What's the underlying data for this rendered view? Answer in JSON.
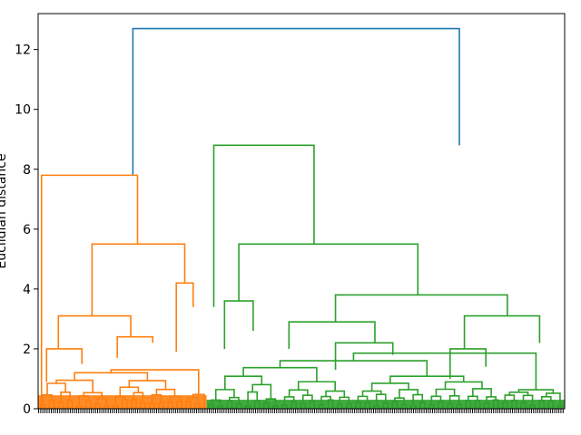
{
  "chart_data": {
    "type": "dendrogram",
    "ylabel": "Euclidian distance",
    "xlabel": "",
    "ylim": [
      0,
      13.2
    ],
    "yticks": [
      0,
      2,
      4,
      6,
      8,
      10,
      12
    ],
    "grid": false,
    "colors": {
      "root": "#1f77b4",
      "cluster_1": "#ff7f0e",
      "cluster_2": "#2ca02c"
    },
    "leaf_count": 500,
    "merges": [
      {
        "cluster": "root",
        "height": 12.7,
        "left": {
          "x": 0.18,
          "h": 7.8
        },
        "right": {
          "x": 0.8,
          "h": 8.8
        }
      },
      {
        "cluster": "cluster_1",
        "height": 7.8,
        "left": {
          "x": 0.02,
          "h": 0.0
        },
        "right": {
          "x": 0.59,
          "h": 5.5
        }
      },
      {
        "cluster": "cluster_1",
        "height": 5.5,
        "left": {
          "x": 0.32,
          "h": 3.1
        },
        "right": {
          "x": 0.87,
          "h": 4.2
        }
      },
      {
        "cluster": "cluster_1",
        "height": 3.1,
        "left": {
          "x": 0.12,
          "h": 2.0
        },
        "right": {
          "x": 0.55,
          "h": 2.4
        }
      },
      {
        "cluster": "cluster_1",
        "height": 2.0,
        "left": {
          "x": 0.05,
          "h": 0.9
        },
        "right": {
          "x": 0.26,
          "h": 1.5
        }
      },
      {
        "cluster": "cluster_1",
        "height": 2.4,
        "left": {
          "x": 0.47,
          "h": 1.7
        },
        "right": {
          "x": 0.68,
          "h": 2.2
        }
      },
      {
        "cluster": "cluster_1",
        "height": 4.2,
        "left": {
          "x": 0.82,
          "h": 1.9
        },
        "right": {
          "x": 0.92,
          "h": 3.4
        }
      },
      {
        "cluster": "cluster_2",
        "height": 8.8,
        "left": {
          "x": 0.02,
          "h": 3.4
        },
        "right": {
          "x": 0.3,
          "h": 5.5
        }
      },
      {
        "cluster": "cluster_2",
        "height": 5.5,
        "left": {
          "x": 0.09,
          "h": 3.6
        },
        "right": {
          "x": 0.59,
          "h": 3.8
        }
      },
      {
        "cluster": "cluster_2",
        "height": 3.6,
        "left": {
          "x": 0.05,
          "h": 2.0
        },
        "right": {
          "x": 0.13,
          "h": 2.6
        }
      },
      {
        "cluster": "cluster_2",
        "height": 3.8,
        "left": {
          "x": 0.36,
          "h": 2.9
        },
        "right": {
          "x": 0.84,
          "h": 3.1
        }
      },
      {
        "cluster": "cluster_2",
        "height": 2.9,
        "left": {
          "x": 0.23,
          "h": 2.0
        },
        "right": {
          "x": 0.47,
          "h": 2.2
        }
      },
      {
        "cluster": "cluster_2",
        "height": 3.1,
        "left": {
          "x": 0.72,
          "h": 2.0
        },
        "right": {
          "x": 0.93,
          "h": 2.2
        }
      },
      {
        "cluster": "cluster_2",
        "height": 2.2,
        "left": {
          "x": 0.36,
          "h": 1.3
        },
        "right": {
          "x": 0.52,
          "h": 1.8
        }
      },
      {
        "cluster": "cluster_2",
        "height": 2.0,
        "left": {
          "x": 0.68,
          "h": 1.0
        },
        "right": {
          "x": 0.78,
          "h": 1.4
        }
      }
    ]
  }
}
